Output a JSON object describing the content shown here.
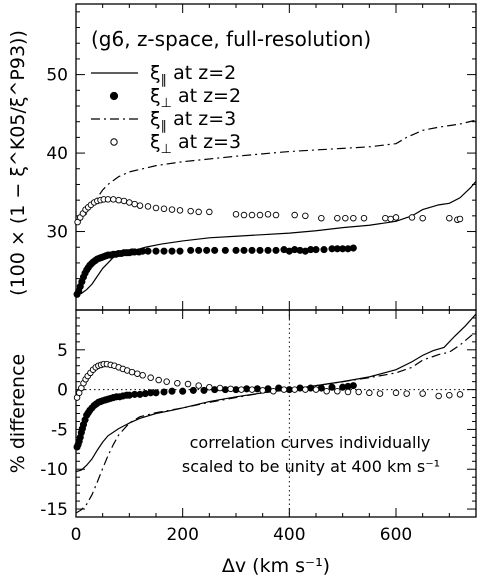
{
  "chart_data": [
    {
      "type": "line",
      "panel": "top",
      "title": "(g6, z-space, full-resolution)",
      "xlabel": "",
      "ylabel": "(100 × (1 − ξ^K05/ξ^P93))",
      "xlim": [
        0,
        750
      ],
      "ylim": [
        20,
        59
      ],
      "yticks": [
        30,
        40,
        50
      ],
      "x_minor_step": 50,
      "y_minor_step": 2,
      "legend": {
        "placement": "top-left",
        "entries": [
          {
            "symbol": "ξ",
            "sub": "∥",
            "text": "at z=2",
            "style": "solid"
          },
          {
            "symbol": "ξ",
            "sub": "⊥",
            "text": "at z=2",
            "style": "filled-circle"
          },
          {
            "symbol": "ξ",
            "sub": "∥",
            "text": "at z=3",
            "style": "dash-dot"
          },
          {
            "symbol": "ξ",
            "sub": "⊥",
            "text": "at z=3",
            "style": "open-circle"
          }
        ]
      },
      "series": [
        {
          "key": "par_z2",
          "style": "solid",
          "x": [
            0,
            10,
            20,
            30,
            40,
            50,
            70,
            100,
            130,
            160,
            200,
            250,
            300,
            350,
            400,
            450,
            500,
            550,
            600,
            630,
            650,
            680,
            700,
            720,
            740,
            750
          ],
          "y": [
            22,
            22.1,
            22.6,
            23.3,
            24.3,
            25.3,
            26.7,
            27.4,
            28.0,
            28.4,
            28.8,
            29.2,
            29.4,
            29.6,
            29.8,
            30.1,
            30.5,
            30.8,
            31.3,
            32.0,
            32.8,
            33.4,
            33.6,
            34.3,
            35.6,
            36.4
          ]
        },
        {
          "key": "par_z3",
          "style": "dash-dot",
          "x": [
            0,
            10,
            20,
            30,
            40,
            50,
            60,
            80,
            100,
            150,
            200,
            300,
            400,
            450,
            500,
            550,
            600,
            620,
            650,
            680,
            700,
            720,
            750
          ],
          "y": [
            31,
            31.5,
            32.3,
            33.3,
            34.3,
            35.3,
            36.0,
            37.0,
            37.6,
            38.4,
            38.9,
            39.6,
            40.2,
            40.4,
            40.6,
            40.8,
            41.2,
            42.0,
            42.9,
            43.3,
            43.5,
            43.7,
            44.2
          ]
        },
        {
          "key": "perp_z2",
          "style": "filled-circle",
          "x": [
            2,
            5,
            8,
            11,
            14,
            17,
            20,
            23,
            26,
            29,
            32,
            36,
            40,
            44,
            48,
            52,
            56,
            60,
            65,
            70,
            75,
            80,
            85,
            90,
            95,
            100,
            105,
            110,
            118,
            125,
            135,
            150,
            165,
            180,
            195,
            215,
            230,
            245,
            260,
            280,
            300,
            315,
            330,
            345,
            360,
            375,
            390,
            400,
            410,
            420,
            430,
            440,
            450,
            465,
            480,
            490,
            500,
            510,
            520
          ],
          "y": [
            22.0,
            22.4,
            23.0,
            23.6,
            24.2,
            24.7,
            25.1,
            25.4,
            25.7,
            25.9,
            26.1,
            26.3,
            26.5,
            26.6,
            26.7,
            26.8,
            26.9,
            27.0,
            27.0,
            27.1,
            27.1,
            27.2,
            27.2,
            27.3,
            27.3,
            27.3,
            27.4,
            27.4,
            27.4,
            27.5,
            27.5,
            27.5,
            27.5,
            27.5,
            27.5,
            27.6,
            27.6,
            27.6,
            27.6,
            27.6,
            27.6,
            27.6,
            27.6,
            27.6,
            27.6,
            27.6,
            27.7,
            27.5,
            27.7,
            27.6,
            27.5,
            27.7,
            27.7,
            27.7,
            27.8,
            27.8,
            27.8,
            27.8,
            27.9
          ]
        },
        {
          "key": "perp_z3",
          "style": "open-circle",
          "x": [
            3,
            8,
            13,
            18,
            23,
            28,
            34,
            40,
            46,
            52,
            60,
            70,
            80,
            90,
            100,
            110,
            120,
            135,
            150,
            165,
            180,
            195,
            215,
            230,
            250,
            300,
            315,
            330,
            345,
            360,
            375,
            410,
            430,
            460,
            490,
            505,
            520,
            540,
            580,
            590,
            600,
            630,
            650,
            700,
            715,
            720
          ],
          "y": [
            31.2,
            31.8,
            32.3,
            32.8,
            33.1,
            33.4,
            33.7,
            33.9,
            34.0,
            34.1,
            34.1,
            34.1,
            34.0,
            33.9,
            33.7,
            33.5,
            33.3,
            33.2,
            33.0,
            32.9,
            32.8,
            32.7,
            32.6,
            32.5,
            32.5,
            32.2,
            32.1,
            32.1,
            32.1,
            32.2,
            32.1,
            32.1,
            32.0,
            31.7,
            31.7,
            31.7,
            31.7,
            31.7,
            31.7,
            31.6,
            31.8,
            31.8,
            31.7,
            31.7,
            31.5,
            31.6
          ]
        }
      ]
    },
    {
      "type": "line",
      "panel": "bottom",
      "xlabel": "Δv (km s⁻¹)",
      "ylabel": "% difference",
      "xlim": [
        0,
        750
      ],
      "ylim": [
        -16,
        10
      ],
      "xticks": [
        0,
        200,
        400,
        600
      ],
      "yticks": [
        -15,
        -10,
        -5,
        0,
        5
      ],
      "x_minor_step": 50,
      "y_minor_step": 1,
      "reference_lines": {
        "x": 400,
        "y": 0
      },
      "annotation": [
        "correlation curves individually",
        "scaled to be unity at 400 km s⁻¹"
      ],
      "series": [
        {
          "key": "par_z2",
          "style": "solid",
          "x": [
            0,
            10,
            20,
            30,
            40,
            50,
            60,
            80,
            100,
            120,
            150,
            180,
            200,
            250,
            300,
            350,
            400,
            450,
            500,
            550,
            600,
            630,
            650,
            670,
            690,
            710,
            730,
            750
          ],
          "y": [
            -10.3,
            -10.1,
            -9.5,
            -8.7,
            -7.6,
            -6.6,
            -5.8,
            -4.9,
            -4.2,
            -3.6,
            -3.0,
            -2.6,
            -2.3,
            -1.5,
            -0.9,
            -0.4,
            0,
            0.5,
            1.0,
            1.6,
            2.5,
            3.5,
            4.3,
            4.9,
            5.3,
            6.7,
            8.0,
            9.5
          ]
        },
        {
          "key": "par_z3",
          "style": "dash-dot",
          "x": [
            0,
            10,
            20,
            30,
            40,
            50,
            60,
            70,
            80,
            100,
            120,
            150,
            200,
            250,
            300,
            350,
            400,
            450,
            500,
            550,
            600,
            630,
            650,
            680,
            700,
            720,
            750
          ],
          "y": [
            -15.5,
            -15.1,
            -14.4,
            -13.2,
            -11.6,
            -9.9,
            -8.3,
            -6.9,
            -5.7,
            -4.2,
            -3.4,
            -2.9,
            -2.3,
            -1.6,
            -1.0,
            -0.4,
            0,
            0.5,
            1.0,
            1.5,
            2.1,
            2.8,
            3.7,
            4.4,
            4.7,
            5.6,
            7.3
          ]
        },
        {
          "key": "perp_z2",
          "style": "filled-circle",
          "x": [
            2,
            4,
            6,
            8,
            10,
            12,
            14,
            17,
            20,
            23,
            26,
            30,
            34,
            38,
            42,
            46,
            50,
            55,
            60,
            65,
            70,
            76,
            82,
            88,
            95,
            100,
            110,
            120,
            130,
            140,
            150,
            165,
            180,
            200,
            220,
            240,
            260,
            280,
            300,
            320,
            340,
            360,
            380,
            400,
            420,
            440,
            460,
            480,
            500,
            510,
            520
          ],
          "y": [
            -7.2,
            -6.9,
            -6.5,
            -6.0,
            -5.4,
            -4.9,
            -4.4,
            -3.8,
            -3.2,
            -2.9,
            -2.6,
            -2.3,
            -2.0,
            -1.8,
            -1.6,
            -1.5,
            -1.4,
            -1.3,
            -1.2,
            -1.1,
            -1.0,
            -0.9,
            -0.9,
            -0.8,
            -0.7,
            -0.7,
            -0.6,
            -0.6,
            -0.5,
            -0.4,
            -0.4,
            -0.3,
            -0.2,
            -0.2,
            -0.1,
            -0.1,
            0,
            0,
            0,
            0.1,
            0.1,
            0.1,
            0.2,
            0,
            0.2,
            0.2,
            0.2,
            0.3,
            0.3,
            0.4,
            0.5
          ]
        },
        {
          "key": "perp_z3",
          "style": "open-circle",
          "x": [
            2,
            6,
            10,
            14,
            18,
            22,
            27,
            32,
            37,
            42,
            47,
            52,
            58,
            65,
            72,
            80,
            88,
            96,
            105,
            115,
            125,
            140,
            155,
            170,
            190,
            210,
            230,
            250,
            270,
            290,
            310,
            330,
            350,
            370,
            390,
            410,
            430,
            450,
            470,
            490,
            510,
            530,
            550,
            570,
            600,
            620,
            650,
            680,
            700,
            720
          ],
          "y": [
            -1.0,
            -0.4,
            0.2,
            0.8,
            1.3,
            1.7,
            2.1,
            2.5,
            2.8,
            3.0,
            3.1,
            3.2,
            3.2,
            3.1,
            3.0,
            2.8,
            2.6,
            2.4,
            2.2,
            2.0,
            1.8,
            1.5,
            1.2,
            1.0,
            0.8,
            0.7,
            0.5,
            0.3,
            0.2,
            0.1,
            0,
            0,
            -0.1,
            -0.2,
            0,
            0,
            0,
            0,
            -0.2,
            -0.2,
            -0.3,
            -0.3,
            -0.4,
            -0.5,
            -0.4,
            -0.5,
            -0.5,
            -0.8,
            -0.7,
            -0.6
          ]
        }
      ]
    }
  ]
}
